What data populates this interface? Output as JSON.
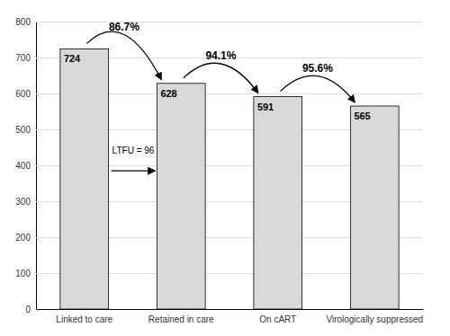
{
  "chart_data": {
    "type": "bar",
    "categories": [
      "Linked to care",
      "Retained in care",
      "On cART",
      "Virologically suppressed"
    ],
    "values": [
      724,
      628,
      591,
      565
    ],
    "color": "#d9d9d9",
    "ylim": [
      0,
      800
    ],
    "yticks": [
      0,
      100,
      200,
      300,
      400,
      500,
      600,
      700,
      800
    ],
    "grid": true,
    "data_labels": true,
    "annotations": [
      "86.7%",
      "94.1%",
      "95.6%",
      "LTFU = 96"
    ]
  }
}
